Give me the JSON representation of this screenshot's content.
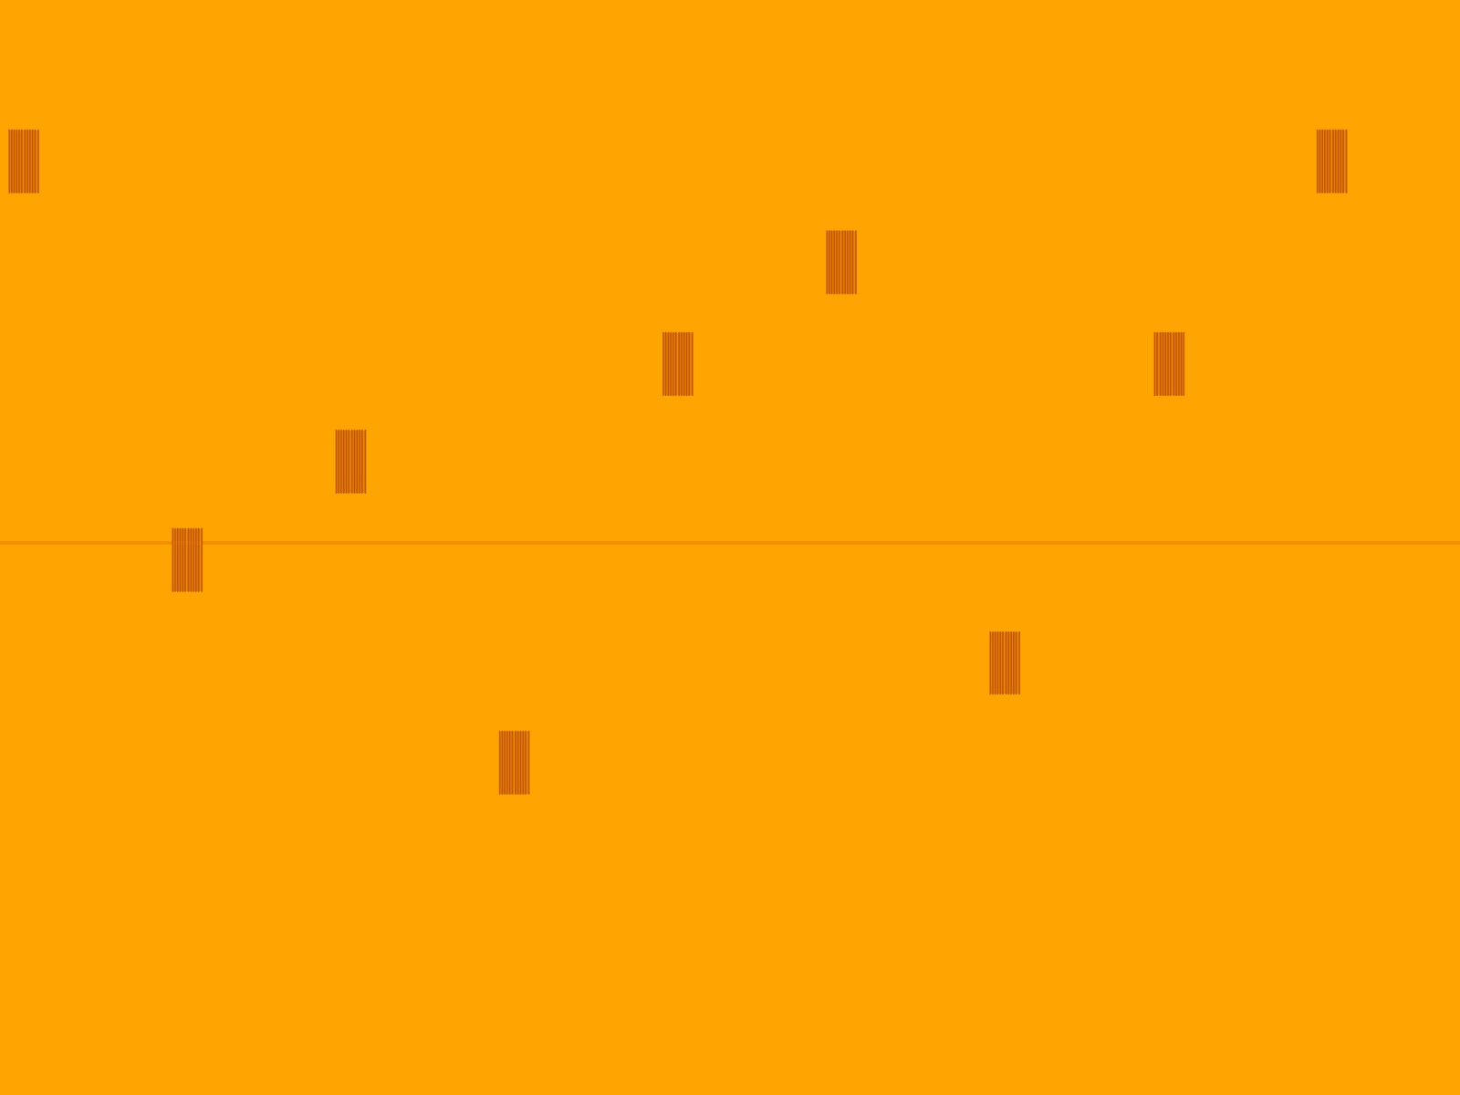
{
  "chart_data": {
    "type": "spectrogram",
    "xlim": [
      0,
      100
    ],
    "ylim": [
      100,
      0
    ],
    "tick_labels": false,
    "grid": false,
    "background": "#ffa400",
    "color": "#e27a00",
    "line_color": "#f08a00",
    "hlines": [
      49.6
    ],
    "blocks": [
      {
        "x": 0.6,
        "y": 11.9,
        "width": 2.0,
        "height": 5.7
      },
      {
        "x": 90.2,
        "y": 11.9,
        "width": 2.0,
        "height": 5.7
      },
      {
        "x": 56.6,
        "y": 21.1,
        "width": 2.0,
        "height": 5.7
      },
      {
        "x": 45.4,
        "y": 30.4,
        "width": 2.0,
        "height": 5.7
      },
      {
        "x": 79.1,
        "y": 30.4,
        "width": 2.0,
        "height": 5.7
      },
      {
        "x": 23.0,
        "y": 39.3,
        "width": 2.0,
        "height": 5.7
      },
      {
        "x": 11.8,
        "y": 48.3,
        "width": 2.0,
        "height": 5.7
      },
      {
        "x": 67.8,
        "y": 57.7,
        "width": 2.0,
        "height": 5.7
      },
      {
        "x": 34.2,
        "y": 66.8,
        "width": 2.0,
        "height": 5.7
      }
    ]
  }
}
